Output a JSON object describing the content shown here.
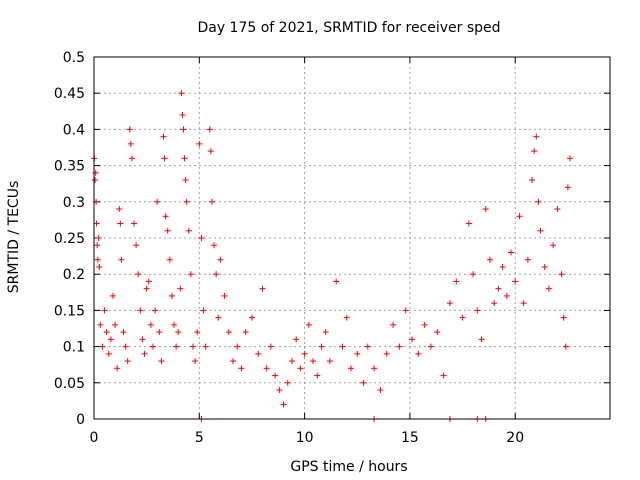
{
  "chart_data": {
    "type": "scatter",
    "title": "Day 175 of 2021, SRMTID for receiver sped",
    "xlabel": "GPS time / hours",
    "ylabel": "SRMTID / TECUs",
    "xlim": [
      0,
      24.5
    ],
    "ylim": [
      0,
      0.5
    ],
    "xticks": [
      0,
      5,
      10,
      15,
      20
    ],
    "xtick_labels": [
      "0",
      "5",
      "10",
      "15",
      "20"
    ],
    "yticks": [
      0,
      0.05,
      0.1,
      0.15,
      0.2,
      0.25,
      0.3,
      0.35,
      0.4,
      0.45,
      0.5
    ],
    "ytick_labels": [
      "0",
      "0.05",
      "0.1",
      "0.15",
      "0.2",
      "0.25",
      "0.3",
      "0.35",
      "0.4",
      "0.45",
      "0.5"
    ],
    "grid": true,
    "marker": "plus",
    "color": "#ff0000",
    "series": [
      {
        "name": "SRMTID",
        "points": [
          [
            0.02,
            0.36
          ],
          [
            0.05,
            0.33
          ],
          [
            0.08,
            0.34
          ],
          [
            0.1,
            0.3
          ],
          [
            0.12,
            0.27
          ],
          [
            0.15,
            0.24
          ],
          [
            0.18,
            0.22
          ],
          [
            0.22,
            0.25
          ],
          [
            0.25,
            0.21
          ],
          [
            0.3,
            0.13
          ],
          [
            0.4,
            0.1
          ],
          [
            0.5,
            0.15
          ],
          [
            0.6,
            0.12
          ],
          [
            0.7,
            0.09
          ],
          [
            0.8,
            0.11
          ],
          [
            0.9,
            0.17
          ],
          [
            1.0,
            0.13
          ],
          [
            1.1,
            0.07
          ],
          [
            1.2,
            0.29
          ],
          [
            1.25,
            0.27
          ],
          [
            1.3,
            0.22
          ],
          [
            1.4,
            0.12
          ],
          [
            1.5,
            0.1
          ],
          [
            1.6,
            0.08
          ],
          [
            1.7,
            0.4
          ],
          [
            1.75,
            0.38
          ],
          [
            1.8,
            0.36
          ],
          [
            1.9,
            0.27
          ],
          [
            2.0,
            0.24
          ],
          [
            2.1,
            0.2
          ],
          [
            2.2,
            0.15
          ],
          [
            2.3,
            0.11
          ],
          [
            2.4,
            0.09
          ],
          [
            2.5,
            0.18
          ],
          [
            2.6,
            0.19
          ],
          [
            2.7,
            0.13
          ],
          [
            2.8,
            0.1
          ],
          [
            2.9,
            0.15
          ],
          [
            3.0,
            0.3
          ],
          [
            3.1,
            0.12
          ],
          [
            3.2,
            0.08
          ],
          [
            3.3,
            0.39
          ],
          [
            3.35,
            0.36
          ],
          [
            3.4,
            0.28
          ],
          [
            3.5,
            0.26
          ],
          [
            3.6,
            0.22
          ],
          [
            3.7,
            0.17
          ],
          [
            3.8,
            0.13
          ],
          [
            3.9,
            0.1
          ],
          [
            4.0,
            0.12
          ],
          [
            4.1,
            0.18
          ],
          [
            4.15,
            0.45
          ],
          [
            4.2,
            0.42
          ],
          [
            4.25,
            0.4
          ],
          [
            4.3,
            0.36
          ],
          [
            4.35,
            0.33
          ],
          [
            4.4,
            0.3
          ],
          [
            4.5,
            0.26
          ],
          [
            4.6,
            0.2
          ],
          [
            4.7,
            0.1
          ],
          [
            4.8,
            0.08
          ],
          [
            4.9,
            0.12
          ],
          [
            5.0,
            0.38
          ],
          [
            5.1,
            0.25
          ],
          [
            5.2,
            0.15
          ],
          [
            5.3,
            0.1
          ],
          [
            5.5,
            0.4
          ],
          [
            5.55,
            0.37
          ],
          [
            5.6,
            0.3
          ],
          [
            5.7,
            0.24
          ],
          [
            5.8,
            0.2
          ],
          [
            5.9,
            0.14
          ],
          [
            6.0,
            0.22
          ],
          [
            6.2,
            0.17
          ],
          [
            6.4,
            0.12
          ],
          [
            6.6,
            0.08
          ],
          [
            6.8,
            0.1
          ],
          [
            7.0,
            0.07
          ],
          [
            7.2,
            0.12
          ],
          [
            7.5,
            0.14
          ],
          [
            7.8,
            0.09
          ],
          [
            8.0,
            0.18
          ],
          [
            8.2,
            0.07
          ],
          [
            8.4,
            0.1
          ],
          [
            8.6,
            0.06
          ],
          [
            8.8,
            0.04
          ],
          [
            9.0,
            0.02
          ],
          [
            9.2,
            0.05
          ],
          [
            9.4,
            0.08
          ],
          [
            9.6,
            0.11
          ],
          [
            9.8,
            0.07
          ],
          [
            10.0,
            0.09
          ],
          [
            10.2,
            0.13
          ],
          [
            10.4,
            0.08
          ],
          [
            10.6,
            0.06
          ],
          [
            10.8,
            0.1
          ],
          [
            11.0,
            0.12
          ],
          [
            11.2,
            0.08
          ],
          [
            11.5,
            0.19
          ],
          [
            11.8,
            0.1
          ],
          [
            12.0,
            0.14
          ],
          [
            12.2,
            0.07
          ],
          [
            12.5,
            0.09
          ],
          [
            12.8,
            0.05
          ],
          [
            13.0,
            0.1
          ],
          [
            13.3,
            0.07
          ],
          [
            13.6,
            0.04
          ],
          [
            13.9,
            0.09
          ],
          [
            14.2,
            0.13
          ],
          [
            14.5,
            0.1
          ],
          [
            14.8,
            0.15
          ],
          [
            15.1,
            0.11
          ],
          [
            15.4,
            0.09
          ],
          [
            15.7,
            0.13
          ],
          [
            16.0,
            0.1
          ],
          [
            16.3,
            0.12
          ],
          [
            16.6,
            0.06
          ],
          [
            16.9,
            0.16
          ],
          [
            17.2,
            0.19
          ],
          [
            17.5,
            0.14
          ],
          [
            17.8,
            0.27
          ],
          [
            18.0,
            0.2
          ],
          [
            18.2,
            0.15
          ],
          [
            18.4,
            0.11
          ],
          [
            18.6,
            0.29
          ],
          [
            18.8,
            0.22
          ],
          [
            19.0,
            0.16
          ],
          [
            19.2,
            0.18
          ],
          [
            19.4,
            0.21
          ],
          [
            19.6,
            0.17
          ],
          [
            19.8,
            0.23
          ],
          [
            20.0,
            0.19
          ],
          [
            20.2,
            0.28
          ],
          [
            20.4,
            0.16
          ],
          [
            20.6,
            0.22
          ],
          [
            20.8,
            0.33
          ],
          [
            20.9,
            0.37
          ],
          [
            21.0,
            0.39
          ],
          [
            21.1,
            0.3
          ],
          [
            21.2,
            0.26
          ],
          [
            21.4,
            0.21
          ],
          [
            21.6,
            0.18
          ],
          [
            21.8,
            0.24
          ],
          [
            22.0,
            0.29
          ],
          [
            22.2,
            0.2
          ],
          [
            22.3,
            0.14
          ],
          [
            22.4,
            0.1
          ],
          [
            22.5,
            0.32
          ],
          [
            22.6,
            0.36
          ]
        ],
        "zero_points": [
          5.1,
          13.3,
          16.9,
          18.2,
          18.6
        ]
      }
    ]
  }
}
